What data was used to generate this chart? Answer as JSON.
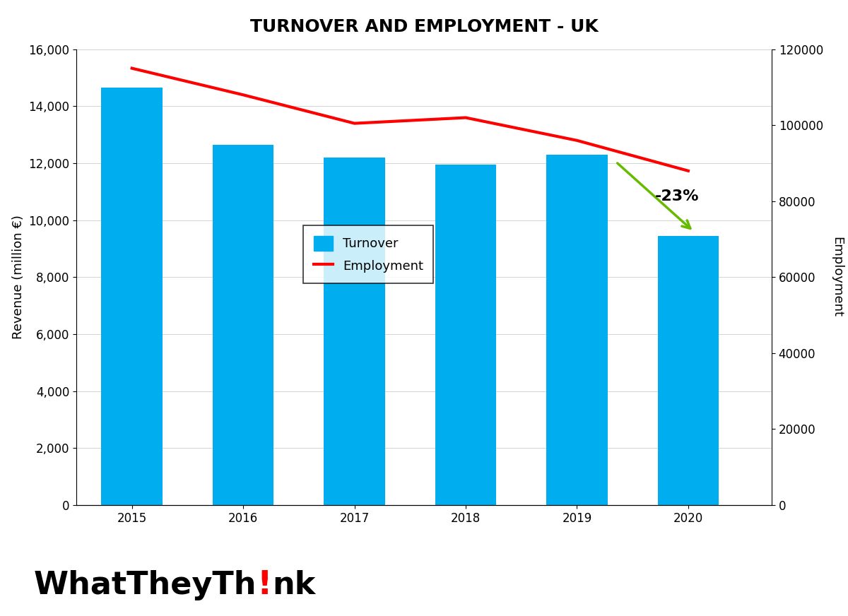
{
  "title": "TURNOVER AND EMPLOYMENT - UK",
  "years": [
    2015,
    2016,
    2017,
    2018,
    2019,
    2020
  ],
  "turnover": [
    14650,
    12650,
    12200,
    11950,
    12300,
    9450
  ],
  "employment": [
    115000,
    108000,
    100500,
    102000,
    96000,
    88000
  ],
  "bar_color": "#00ADEF",
  "line_color": "#FF0000",
  "arrow_color": "#66BB00",
  "annotation_text": "-23%",
  "ylabel_left": "Revenue (million €)",
  "ylabel_right": "Employment",
  "ylim_left": [
    0,
    16000
  ],
  "ylim_right": [
    0,
    120000
  ],
  "yticks_left": [
    0,
    2000,
    4000,
    6000,
    8000,
    10000,
    12000,
    14000,
    16000
  ],
  "yticks_right": [
    0,
    20000,
    40000,
    60000,
    80000,
    100000,
    120000
  ],
  "legend_labels": [
    "Turnover",
    "Employment"
  ],
  "background_color": "#FFFFFF",
  "title_fontsize": 18,
  "axis_fontsize": 13,
  "tick_fontsize": 12
}
